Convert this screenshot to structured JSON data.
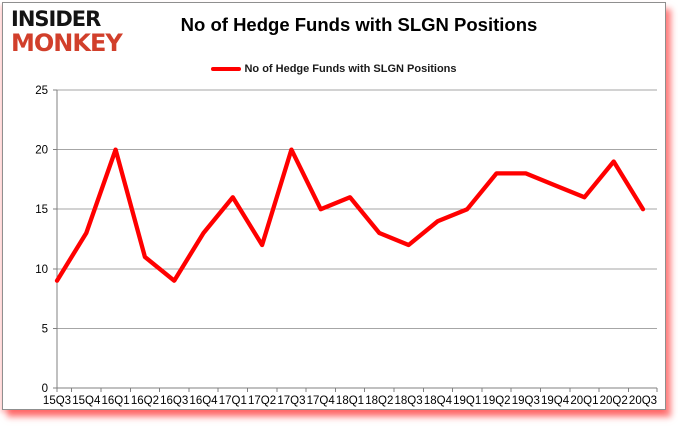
{
  "logo": {
    "line1": "INSIDER",
    "line2": "MONKEY",
    "line1_color": "#141414",
    "line2_color": "#d13f2b"
  },
  "header": {
    "title": "No of Hedge Funds with SLGN Positions"
  },
  "legend": {
    "label": "No of Hedge Funds with SLGN Positions",
    "marker_color": "#ff0000",
    "position": "top"
  },
  "colors": {
    "line": "#ff0000",
    "gridline": "#a6a6a6",
    "axis": "#808080",
    "tick_label": "#000000",
    "background": "#ffffff",
    "frame_glow": "#ff3b3b"
  },
  "chart_data": {
    "type": "line",
    "title": "No of Hedge Funds with SLGN Positions",
    "categories": [
      "15Q3",
      "15Q4",
      "16Q1",
      "16Q2",
      "16Q3",
      "16Q4",
      "17Q1",
      "17Q2",
      "17Q3",
      "17Q4",
      "18Q1",
      "18Q2",
      "18Q3",
      "18Q4",
      "19Q1",
      "19Q2",
      "19Q3",
      "19Q4",
      "20Q1",
      "20Q2",
      "20Q3"
    ],
    "series": [
      {
        "name": "No of Hedge Funds with SLGN Positions",
        "color": "#ff0000",
        "values": [
          9,
          13,
          20,
          11,
          9,
          13,
          16,
          12,
          20,
          15,
          16,
          13,
          12,
          14,
          15,
          18,
          18,
          17,
          16,
          19,
          15
        ]
      }
    ],
    "xlabel": "",
    "ylabel": "",
    "ylim": [
      0,
      25
    ],
    "ytick_step": 5,
    "grid": true,
    "legend_position": "top"
  }
}
